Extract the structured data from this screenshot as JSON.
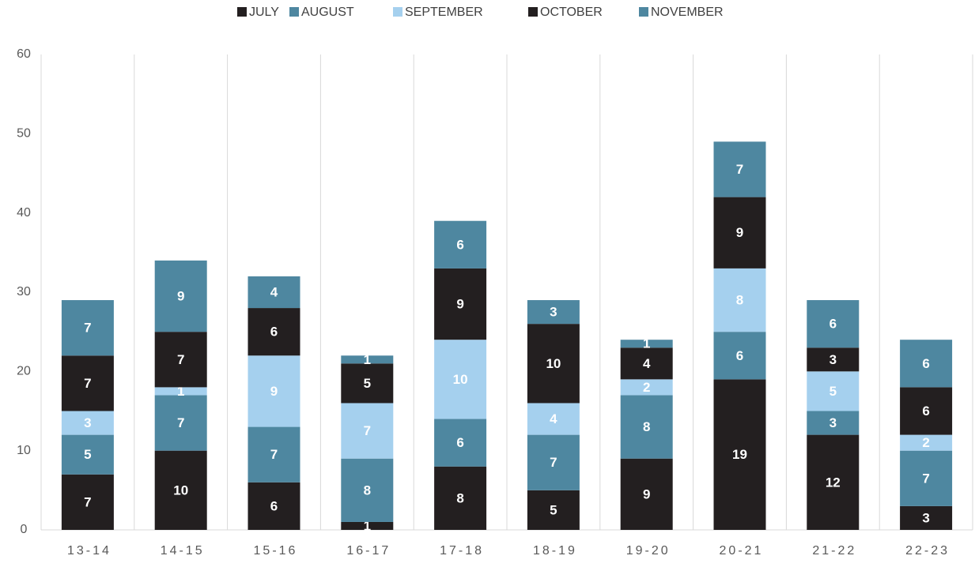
{
  "chart_data": {
    "type": "stacked_bar",
    "categories": [
      "13-14",
      "14-15",
      "15-16",
      "16-17",
      "17-18",
      "18-19",
      "19-20",
      "20-21",
      "21-22",
      "22-23"
    ],
    "series": [
      {
        "name": "JULY",
        "color": "#231f20",
        "values": [
          7,
          10,
          6,
          1,
          8,
          5,
          9,
          19,
          12,
          3
        ]
      },
      {
        "name": "AUGUST",
        "color": "#4e87a0",
        "values": [
          5,
          7,
          7,
          8,
          6,
          7,
          8,
          6,
          3,
          7
        ]
      },
      {
        "name": "SEPTEMBER",
        "color": "#a5d0ee",
        "values": [
          3,
          1,
          9,
          7,
          10,
          4,
          2,
          8,
          5,
          2
        ]
      },
      {
        "name": "OCTOBER",
        "color": "#231f20",
        "values": [
          7,
          7,
          6,
          5,
          9,
          10,
          4,
          9,
          3,
          6
        ]
      },
      {
        "name": "NOVEMBER",
        "color": "#4e87a0",
        "values": [
          7,
          9,
          4,
          1,
          6,
          3,
          1,
          7,
          6,
          6
        ]
      }
    ],
    "ylim": [
      0,
      60
    ],
    "yticks": [
      0,
      10,
      20,
      30,
      40,
      50,
      60
    ],
    "legend": "top",
    "grid": false
  }
}
